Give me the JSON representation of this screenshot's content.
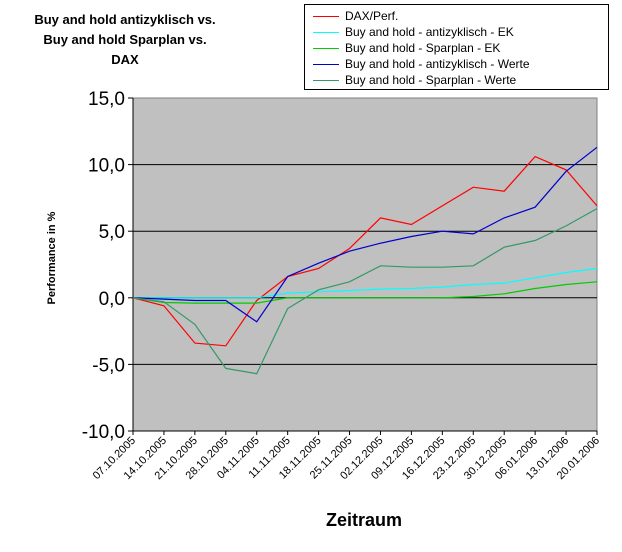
{
  "chart_data": {
    "type": "line",
    "title_lines": [
      "Buy and hold antizyklisch vs.",
      "Buy and hold Sparplan vs.",
      "DAX"
    ],
    "xlabel": "Zeitraum",
    "ylabel": "Performance in %",
    "ylim": [
      -10,
      15
    ],
    "yticks": [
      "15,0",
      "10,0",
      "5,0",
      "0,0",
      "-5,0",
      "-10,0"
    ],
    "ytick_values": [
      15,
      10,
      5,
      0,
      -5,
      -10
    ],
    "grid": true,
    "legend_position": "top-right",
    "x": [
      "07.10.2005",
      "14.10.2005",
      "21.10.2005",
      "28.10.2005",
      "04.11.2005",
      "11.11.2005",
      "18.11.2005",
      "25.11.2005",
      "02.12.2005",
      "09.12.2005",
      "16.12.2005",
      "23.12.2005",
      "30.12.2005",
      "06.01.2006",
      "13.01.2006",
      "20.01.2006"
    ],
    "series": [
      {
        "name": "DAX/Perf.",
        "color": "#ff0000",
        "values": [
          0.0,
          -0.6,
          -3.4,
          -3.6,
          -0.2,
          1.6,
          2.2,
          3.7,
          6.0,
          5.5,
          6.9,
          8.3,
          8.0,
          10.6,
          9.6,
          6.9
        ]
      },
      {
        "name": "Buy and hold - antizyklisch - EK",
        "color": "#00ffff",
        "values": [
          0.0,
          0.0,
          0.0,
          0.0,
          0.0,
          0.35,
          0.45,
          0.55,
          0.65,
          0.7,
          0.8,
          1.0,
          1.1,
          1.5,
          1.9,
          2.2
        ]
      },
      {
        "name": "Buy and hold - Sparplan - EK",
        "color": "#00cc00",
        "values": [
          0.0,
          -0.35,
          -0.4,
          -0.4,
          -0.4,
          0.0,
          0.0,
          0.0,
          0.0,
          0.0,
          0.0,
          0.1,
          0.3,
          0.7,
          1.0,
          1.2
        ]
      },
      {
        "name": "Buy and hold - antizyklisch - Werte",
        "color": "#0000cc",
        "values": [
          0.0,
          -0.1,
          -0.2,
          -0.2,
          -1.8,
          1.6,
          2.6,
          3.5,
          4.1,
          4.6,
          5.0,
          4.8,
          6.0,
          6.8,
          9.5,
          11.3
        ]
      },
      {
        "name": "Buy and hold - Sparplan - Werte",
        "color": "#339966",
        "values": [
          0.0,
          -0.3,
          -2.0,
          -5.3,
          -5.7,
          -0.8,
          0.6,
          1.2,
          2.4,
          2.3,
          2.3,
          2.4,
          3.8,
          4.3,
          5.4,
          6.7
        ]
      }
    ]
  }
}
